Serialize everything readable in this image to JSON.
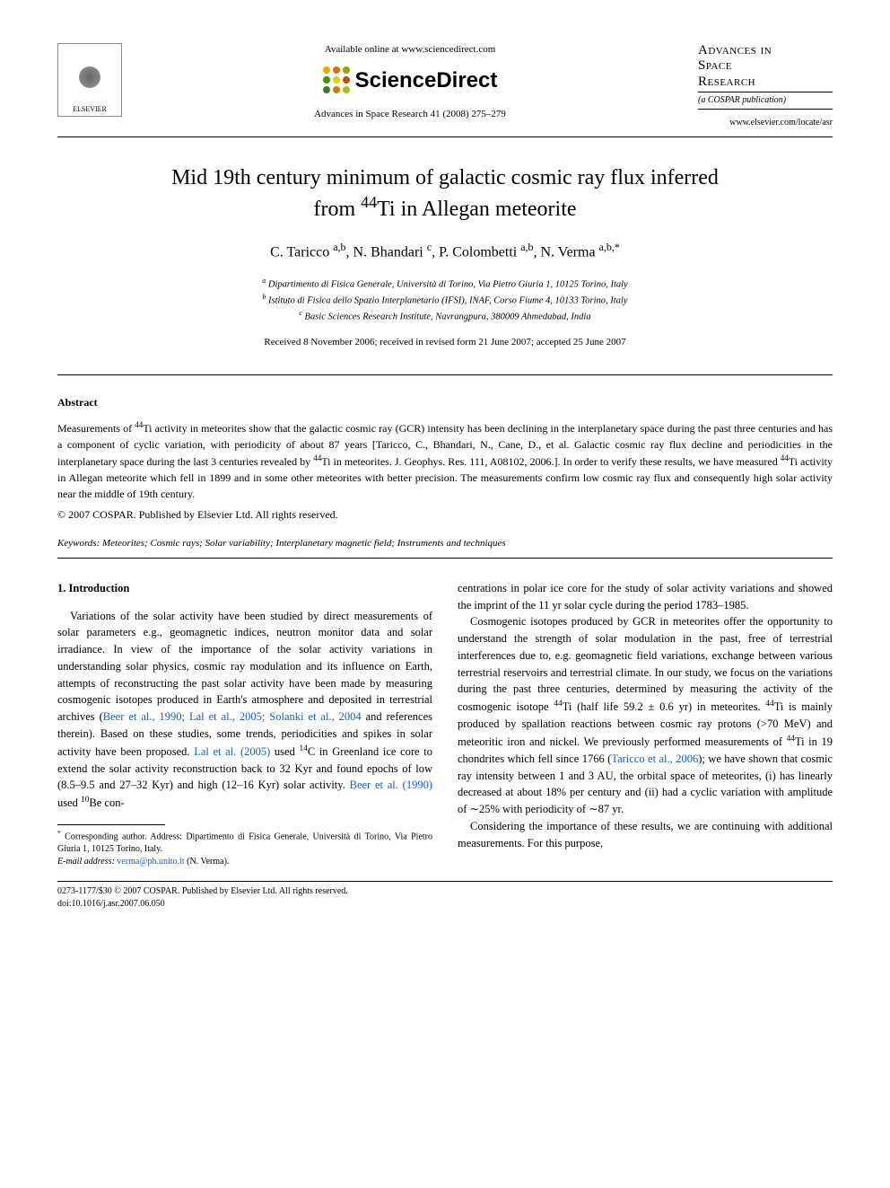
{
  "header": {
    "elsevier_label": "ELSEVIER",
    "available_online": "Available online at www.sciencedirect.com",
    "sciencedirect_label": "ScienceDirect",
    "sd_dot_colors": [
      "#f7a600",
      "#e56b00",
      "#8aa800",
      "#4a8a00",
      "#e0d000",
      "#c05000",
      "#3a7a30",
      "#d08000",
      "#a0c020"
    ],
    "journal_ref": "Advances in Space Research 41 (2008) 275–279",
    "journal_small_title_1": "Advances in",
    "journal_small_title_2": "Space",
    "journal_small_title_3": "Research",
    "cospar_note": "(a COSPAR publication)",
    "elsevier_url": "www.elsevier.com/locate/asr"
  },
  "title_line1": "Mid 19th century minimum of galactic cosmic ray flux inferred",
  "title_line2_prefix": "from ",
  "title_line2_sup": "44",
  "title_line2_suffix": "Ti in Allegan meteorite",
  "authors": {
    "a1": "C. Taricco",
    "a1_sup": "a,b",
    "a2": "N. Bhandari",
    "a2_sup": "c",
    "a3": "P. Colombetti",
    "a3_sup": "a,b",
    "a4": "N. Verma",
    "a4_sup": "a,b,*"
  },
  "affiliations": {
    "a": "Dipartimento di Fisica Generale, Università di Torino, Via Pietro Giuria 1, 10125 Torino, Italy",
    "b": "Istituto di Fisica dello Spazio Interplanetario (IFSI), INAF, Corso Fiume 4, 10133 Torino, Italy",
    "c": "Basic Sciences Research Institute, Navrangpura, 380009 Ahmedabad, India"
  },
  "dates": "Received 8 November 2006; received in revised form 21 June 2007; accepted 25 June 2007",
  "abstract_heading": "Abstract",
  "abstract_text": "Measurements of 44Ti activity in meteorites show that the galactic cosmic ray (GCR) intensity has been declining in the interplanetary space during the past three centuries and has a component of cyclic variation, with periodicity of about 87 years [Taricco, C., Bhandari, N., Cane, D., et al. Galactic cosmic ray flux decline and periodicities in the interplanetary space during the last 3 centuries revealed by 44Ti in meteorites. J. Geophys. Res. 111, A08102, 2006.]. In order to verify these results, we have measured 44Ti activity in Allegan meteorite which fell in 1899 and in some other meteorites with better precision. The measurements confirm low cosmic ray flux and consequently high solar activity near the middle of 19th century.",
  "copyright": "© 2007 COSPAR. Published by Elsevier Ltd. All rights reserved.",
  "keywords_label": "Keywords:",
  "keywords": "Meteorites; Cosmic rays; Solar variability; Interplanetary magnetic field; Instruments and techniques",
  "section1_heading": "1. Introduction",
  "col1_p1_a": "Variations of the solar activity have been studied by direct measurements of solar parameters e.g., geomagnetic indices, neutron monitor data and solar irradiance. In view of the importance of the solar activity variations in understanding solar physics, cosmic ray modulation and its influence on Earth, attempts of reconstructing the past solar activity have been made by measuring cosmogenic isotopes produced in Earth's atmosphere and deposited in terrestrial archives (",
  "col1_p1_ref1": "Beer et al., 1990; Lal et al., 2005; Solanki et al., 2004",
  "col1_p1_b": " and references therein). Based on these studies, some trends, periodicities and spikes in solar activity have been proposed. ",
  "col1_p1_ref2": "Lal et al. (2005)",
  "col1_p1_c": " used 14C in Greenland ice core to extend the solar activity reconstruction back to 32 Kyr and found epochs of low (8.5–9.5 and 27–32 Kyr) and high (12–16 Kyr) solar activity. ",
  "col1_p1_ref3": "Beer et al. (1990)",
  "col1_p1_d": " used 10Be con-",
  "col2_p1": "centrations in polar ice core for the study of solar activity variations and showed the imprint of the 11 yr solar cycle during the period 1783–1985.",
  "col2_p2_a": "Cosmogenic isotopes produced by GCR in meteorites offer the opportunity to understand the strength of solar modulation in the past, free of terrestrial interferences due to, e.g. geomagnetic field variations, exchange between various terrestrial reservoirs and terrestrial climate. In our study, we focus on the variations during the past three centuries, determined by measuring the activity of the cosmogenic isotope 44Ti (half life 59.2 ± 0.6 yr) in meteorites. 44Ti is mainly produced by spallation reactions between cosmic ray protons (>70 MeV) and meteoritic iron and nickel. We previously performed measurements of 44Ti in 19 chondrites which fell since 1766 (",
  "col2_p2_ref1": "Taricco et al., 2006",
  "col2_p2_b": "); we have shown that cosmic ray intensity between 1 and 3 AU, the orbital space of meteorites, (i) has linearly decreased at about 18% per century and (ii) had a cyclic variation with amplitude of ∼25% with periodicity of ∼87 yr.",
  "col2_p3": "Considering the importance of these results, we are continuing with additional measurements. For this purpose,",
  "footnote": {
    "corr_label": "*",
    "corr_text": "Corresponding author. Address: Dipartimento di Fisica Generale, Università di Torino, Via Pietro Giuria 1, 10125 Torino, Italy.",
    "email_label": "E-mail address:",
    "email": "verma@ph.unito.it",
    "email_name": "(N. Verma)."
  },
  "footer": {
    "issn": "0273-1177/$30 © 2007 COSPAR. Published by Elsevier Ltd. All rights reserved.",
    "doi": "doi:10.1016/j.asr.2007.06.050"
  },
  "colors": {
    "link": "#1560bd",
    "text": "#000000",
    "bg": "#ffffff"
  }
}
